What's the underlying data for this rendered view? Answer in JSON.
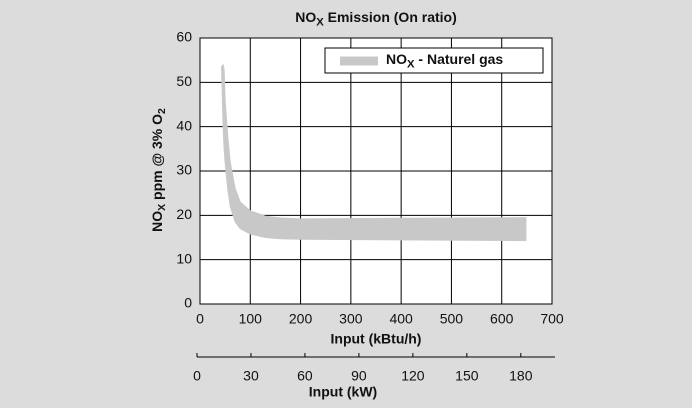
{
  "chart_data": {
    "type": "band",
    "title": [
      "NO",
      "X",
      " Emission (On ratio)"
    ],
    "y_label": [
      "NO",
      "X",
      " ppm @ 3% O",
      "2"
    ],
    "x_label": "Input (kBtu/h)",
    "x2_label": "Input (kW)",
    "x": [
      43,
      46,
      48,
      50,
      55,
      60,
      70,
      80,
      100,
      130,
      160,
      200,
      648
    ],
    "series": [
      {
        "name": [
          "NO",
          "X",
          " - Naturel gas"
        ],
        "color": "#c8c8c8",
        "upper": [
          53.5,
          54,
          53,
          46,
          38,
          32,
          26,
          23,
          21,
          19.8,
          19.4,
          19.2,
          19.5
        ],
        "lower": [
          53,
          40,
          35,
          32,
          26,
          22,
          18.5,
          17,
          15.8,
          15,
          14.7,
          14.6,
          14.3
        ]
      }
    ],
    "xlim": [
      0,
      700
    ],
    "xticks": [
      0,
      100,
      200,
      300,
      400,
      500,
      600,
      700
    ],
    "ylim": [
      0,
      60
    ],
    "yticks": [
      0,
      10,
      20,
      30,
      40,
      50,
      60
    ],
    "x2lim": [
      0,
      199
    ],
    "x2ticks": [
      0,
      30,
      60,
      90,
      120,
      150,
      180
    ],
    "grid": true,
    "legend": "upper right"
  }
}
